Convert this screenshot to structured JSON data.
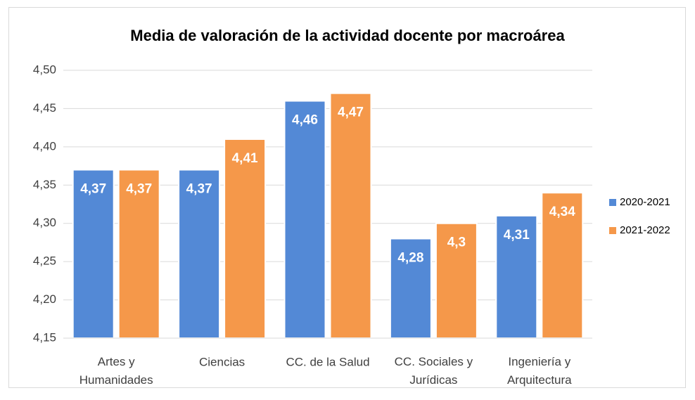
{
  "chart_data": {
    "type": "bar",
    "title": "Media de valoración de la actividad docente por macroárea",
    "categories": [
      "Artes y Humanidades",
      "Ciencias",
      "CC. de la Salud",
      "CC. Sociales y Jurídicas",
      "Ingeniería y Arquitectura"
    ],
    "series": [
      {
        "name": "2020-2021",
        "color": "#5389d6",
        "values": [
          4.37,
          4.37,
          4.46,
          4.28,
          4.31
        ],
        "value_labels": [
          "4,37",
          "4,37",
          "4,46",
          "4,28",
          "4,31"
        ]
      },
      {
        "name": "2021-2022",
        "color": "#f5984a",
        "values": [
          4.37,
          4.41,
          4.47,
          4.3,
          4.34
        ],
        "value_labels": [
          "4,37",
          "4,41",
          "4,47",
          "4,3",
          "4,34"
        ]
      }
    ],
    "ylim": [
      4.15,
      4.5
    ],
    "yticks": [
      {
        "value": 4.15,
        "label": "4,15"
      },
      {
        "value": 4.2,
        "label": "4,20"
      },
      {
        "value": 4.25,
        "label": "4,25"
      },
      {
        "value": 4.3,
        "label": "4,30"
      },
      {
        "value": 4.35,
        "label": "4,35"
      },
      {
        "value": 4.4,
        "label": "4,40"
      },
      {
        "value": 4.45,
        "label": "4,45"
      },
      {
        "value": 4.5,
        "label": "4,50"
      }
    ],
    "grid": true,
    "legend": "right"
  }
}
